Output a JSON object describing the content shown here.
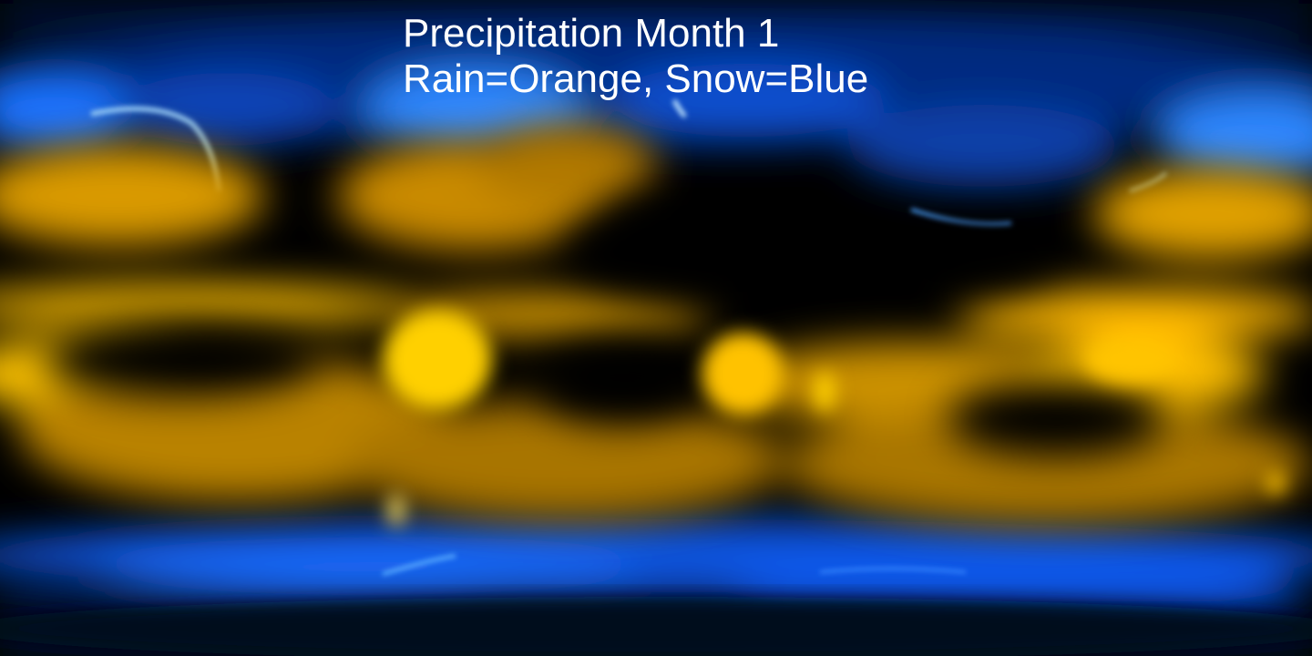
{
  "map": {
    "title": "Precipitation Month 1",
    "subtitle": "Rain=Orange, Snow=Blue",
    "projection": "equirectangular",
    "colors": {
      "background": "#000000",
      "rain": "#ffb000",
      "rain_bright": "#ffd21a",
      "snow": "#1a6cff",
      "snow_bright": "#66b8ff",
      "title_text": "#ffffff"
    }
  }
}
